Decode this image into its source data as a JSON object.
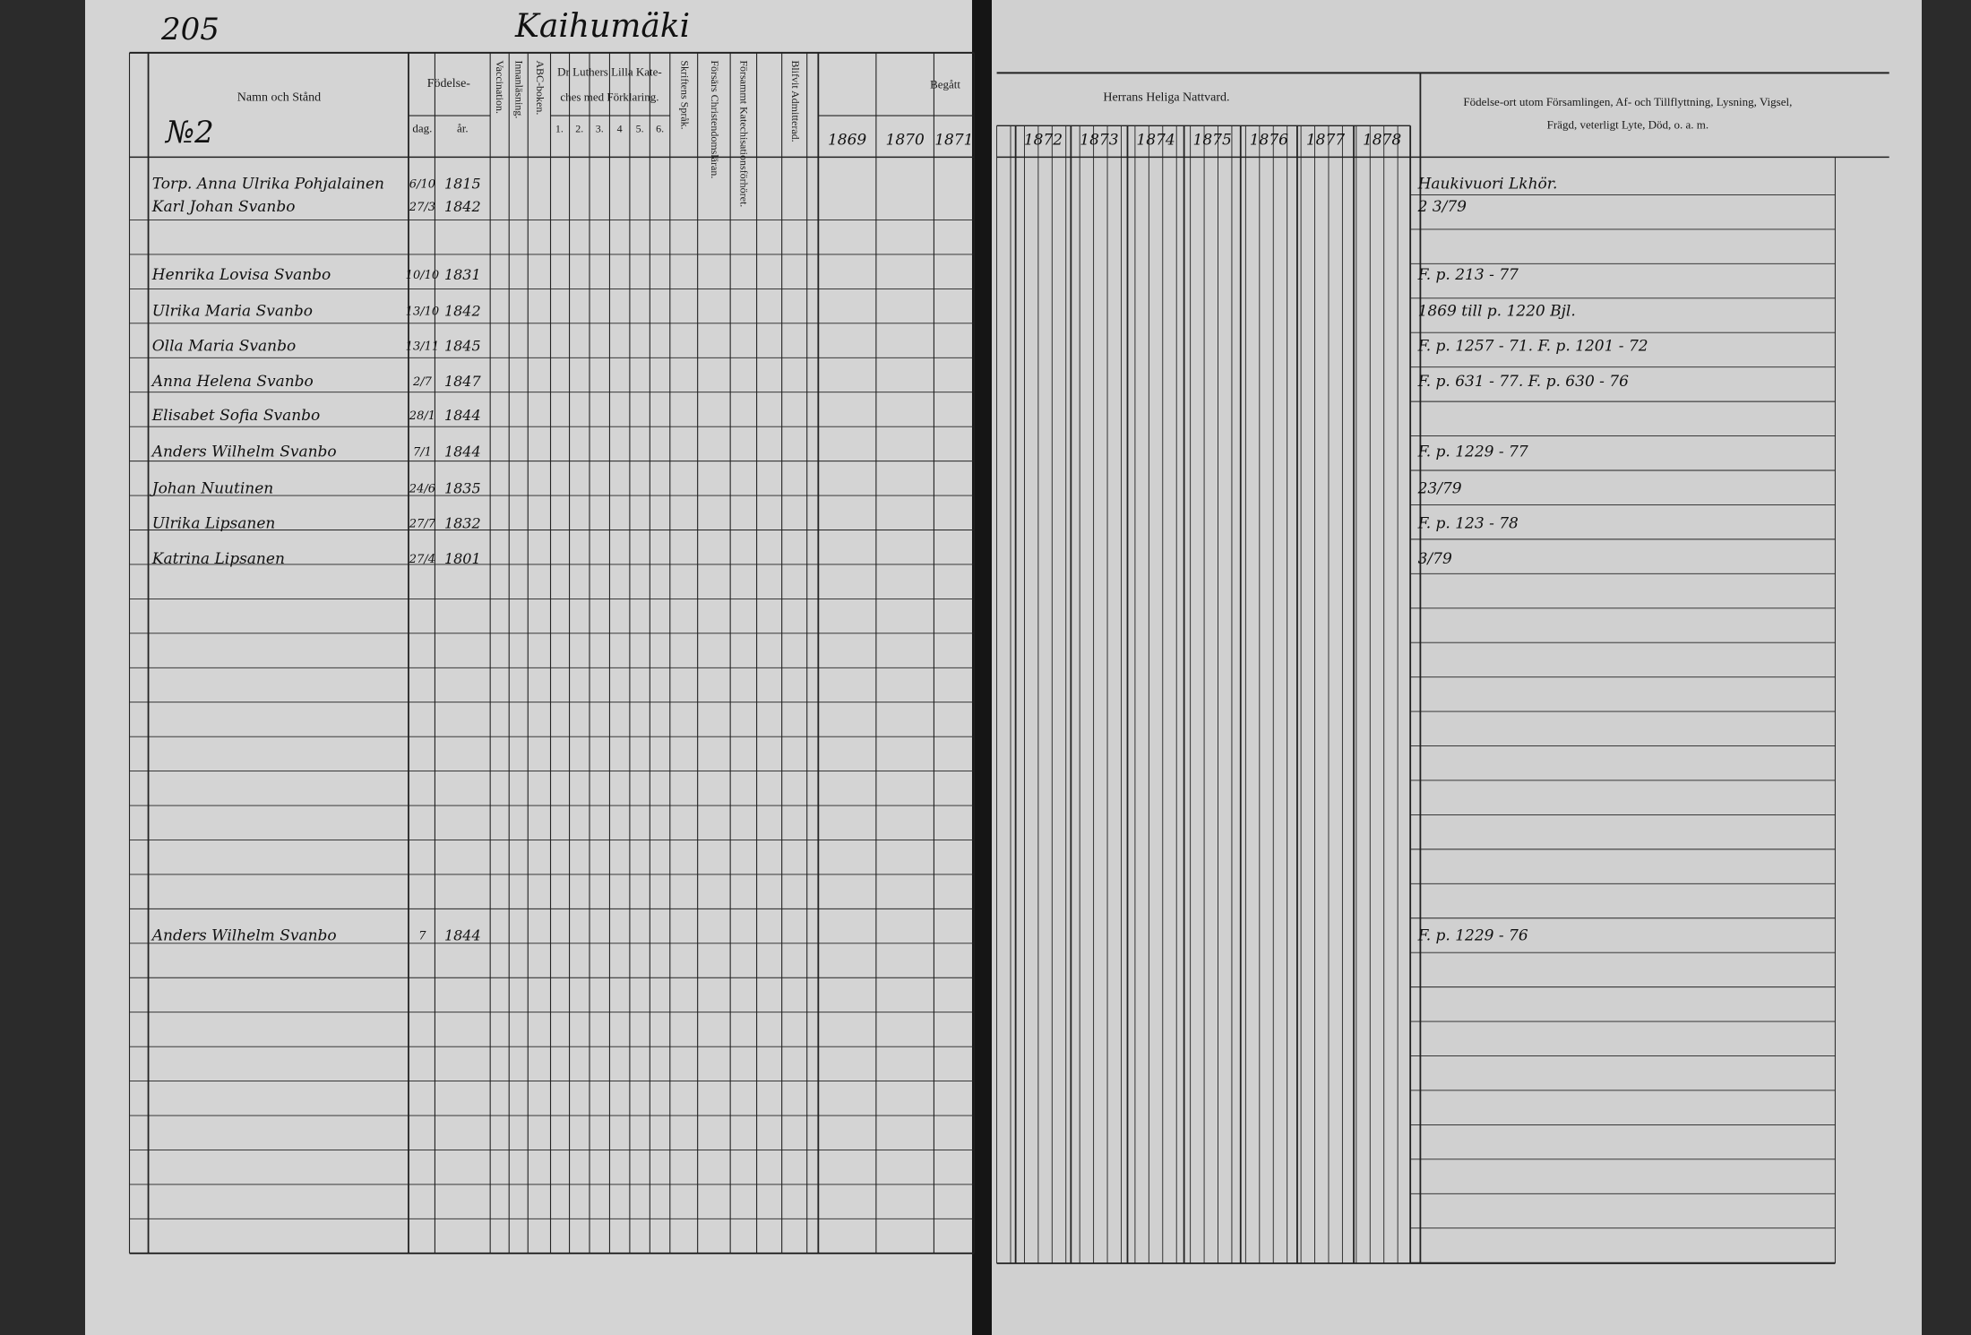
{
  "header": {
    "page_number": "205",
    "village": "Kaihumäki",
    "household": "№2"
  },
  "columns": {
    "name": "Namn och Stånd",
    "birth": "Födelse-",
    "day": "dag.",
    "year": "år.",
    "vaccination": "Vaccination.",
    "reading": "Innanläsning.",
    "abc": "ABC-boken.",
    "catechism": [
      "Dr Luthers Lilla Kate-",
      "ches med Förklaring."
    ],
    "catechism_parts": [
      "1.",
      "2.",
      "3.",
      "4",
      "5.",
      "6."
    ],
    "scripture": "Skriftens Språk.",
    "christendom": "Försärs Christendomsläran.",
    "katechisation": "Försammt Katechisationsförhöret.",
    "admitted": "Blifvit Admitterad.",
    "attended": "Begått",
    "communion": "Herrans Heliga Nattvard.",
    "years": [
      "1869",
      "1870",
      "1871",
      "1872",
      "1873",
      "1874",
      "1875",
      "1876",
      "1877",
      "1878"
    ],
    "remarks": [
      "Födelse-ort utom Församlingen, Af- och Tillflyttning, Lysning, Vigsel,",
      "Frägd, veterligt Lyte, Död, o. a. m."
    ]
  },
  "rows": [
    {
      "name": "Torp. Anna Ulrika Pohjalainen",
      "day": "6/10",
      "year": "1815",
      "remark": "Haukivuori Lkhör."
    },
    {
      "name": "Karl Johan Svanbo",
      "day": "27/3",
      "year": "1842",
      "remark": "2 3/79"
    },
    {
      "name": "Henrika Lovisa Svanbo",
      "day": "10/10",
      "year": "1831",
      "remark": "F. p. 213 - 77"
    },
    {
      "name": "Ulrika Maria Svanbo",
      "day": "13/10",
      "year": "1842",
      "remark": "1869 till p. 1220 Bjl."
    },
    {
      "name": "Olla Maria Svanbo",
      "day": "13/11",
      "year": "1845",
      "remark": "F. p. 1257 - 71. F. p. 1201 - 72"
    },
    {
      "name": "Anna Helena Svanbo",
      "day": "2/7",
      "year": "1847",
      "remark": "F. p. 631 - 77. F. p. 630 - 76"
    },
    {
      "name": "Elisabet Sofia Svanbo",
      "day": "28/1",
      "year": "1844",
      "remark": ""
    },
    {
      "name": "Anders Wilhelm Svanbo",
      "day": "7/1",
      "year": "1844",
      "remark": "F. p. 1229 - 77"
    },
    {
      "name": "Johan Nuutinen",
      "day": "24/6",
      "year": "1835",
      "remark": "23/79"
    },
    {
      "name": "Ulrika Lipsanen",
      "day": "27/7",
      "year": "1832",
      "remark": "F. p. 123 - 78"
    },
    {
      "name": "Katrina Lipsanen",
      "day": "27/4",
      "year": "1801",
      "remark": "3/79"
    },
    {
      "name": "Anders Wilhelm Svanbo",
      "day": "7",
      "year": "1844",
      "remark": "F. p. 1229 - 76"
    }
  ]
}
